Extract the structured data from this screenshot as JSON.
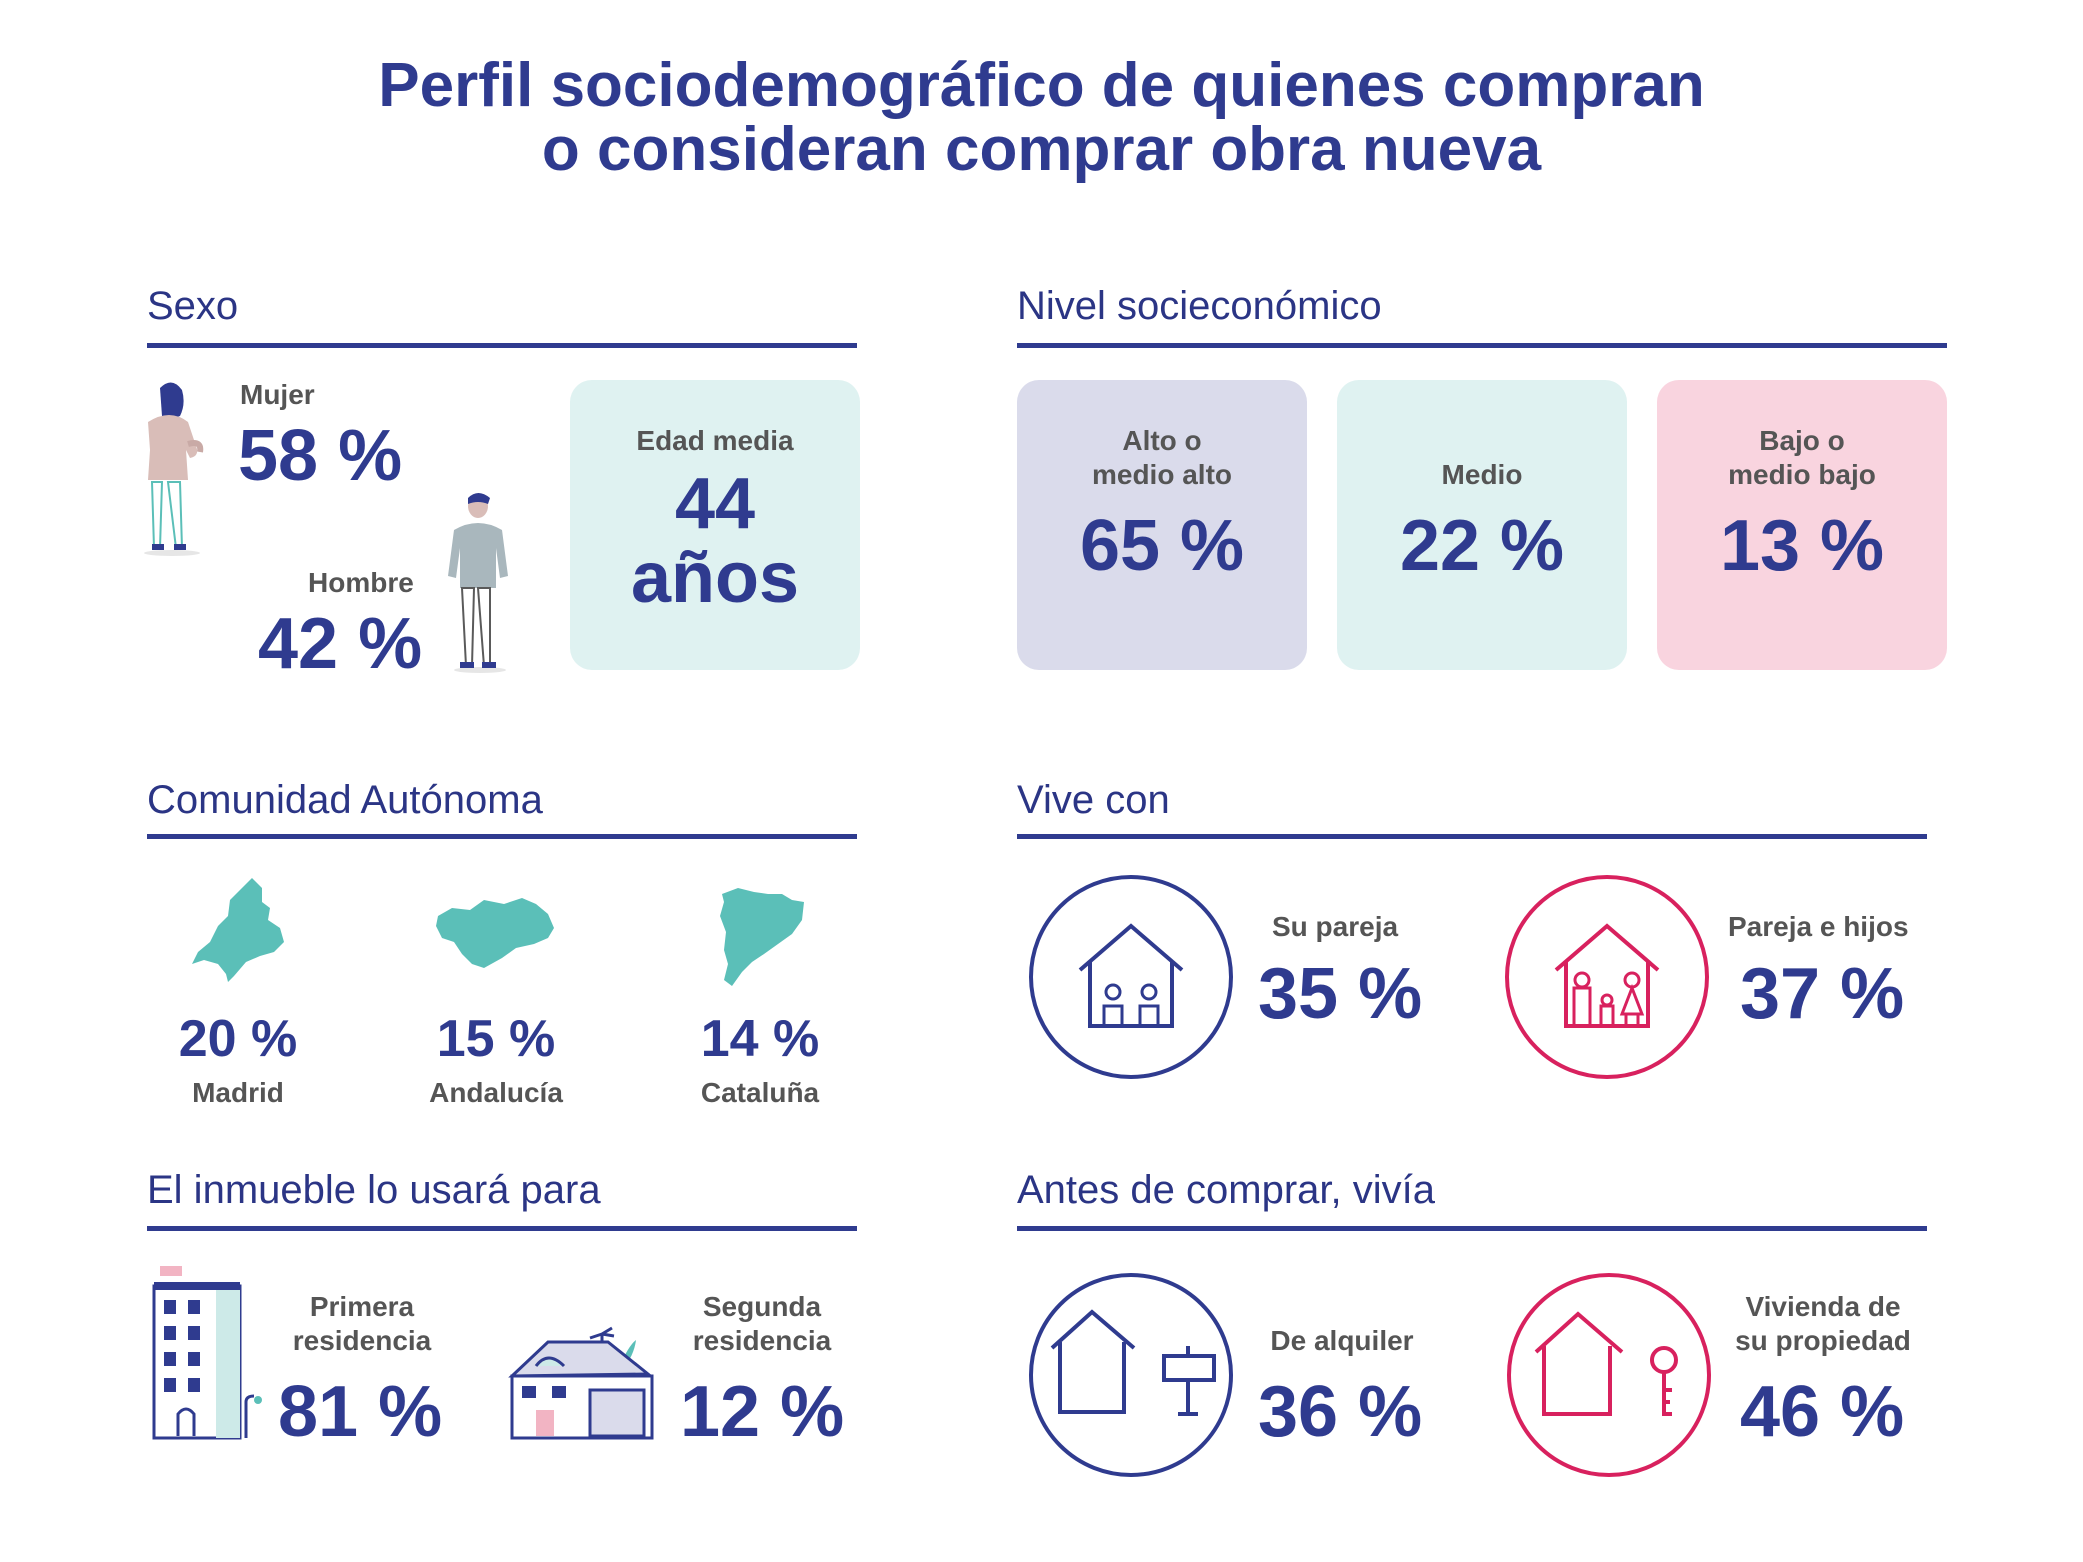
{
  "title": {
    "line1": "Perfil sociodemográfico de quienes compran",
    "line2": "o consideran comprar obra nueva"
  },
  "colors": {
    "navy": "#2f3b8f",
    "teal": "#5bbfb8",
    "pink": "#d8215e",
    "card_lavender": "#dadbeb",
    "card_mint": "#dff2f1",
    "card_pink": "#f9d4df"
  },
  "sexo": {
    "title": "Sexo",
    "mujer_label": "Mujer",
    "mujer_value": "58 %",
    "hombre_label": "Hombre",
    "hombre_value": "42 %",
    "edad_label": "Edad media",
    "edad_value": "44",
    "edad_unit": "años",
    "icons": [
      "woman-illustration-icon",
      "man-illustration-icon"
    ]
  },
  "nivel": {
    "title": "Nivel socieconómico",
    "cards": [
      {
        "label1": "Alto o",
        "label2": "medio alto",
        "value": "65 %"
      },
      {
        "label1": "",
        "label2": "Medio",
        "value": "22 %"
      },
      {
        "label1": "Bajo o",
        "label2": "medio bajo",
        "value": "13 %"
      }
    ]
  },
  "comunidad": {
    "title": "Comunidad Autónoma",
    "items": [
      {
        "value": "20 %",
        "name": "Madrid",
        "icon": "madrid-map-icon"
      },
      {
        "value": "15 %",
        "name": "Andalucía",
        "icon": "andalucia-map-icon"
      },
      {
        "value": "14 %",
        "name": "Cataluña",
        "icon": "cataluna-map-icon"
      }
    ]
  },
  "vive": {
    "title": "Vive con",
    "items": [
      {
        "label": "Su pareja",
        "value": "35 %",
        "icon": "couple-house-icon"
      },
      {
        "label": "Pareja e hijos",
        "value": "37 %",
        "icon": "family-house-icon"
      }
    ]
  },
  "uso": {
    "title": "El inmueble lo usará para",
    "items": [
      {
        "label1": "Primera",
        "label2": "residencia",
        "value": "81 %",
        "icon": "apartment-building-icon"
      },
      {
        "label1": "Segunda",
        "label2": "residencia",
        "value": "12 %",
        "icon": "holiday-house-icon"
      }
    ]
  },
  "antes": {
    "title": "Antes de comprar, vivía",
    "items": [
      {
        "label1": "",
        "label2": "De alquiler",
        "value": "36 %",
        "icon": "rent-sign-house-icon"
      },
      {
        "label1": "Vivienda de",
        "label2": "su propiedad",
        "value": "46 %",
        "icon": "key-house-icon"
      }
    ]
  }
}
